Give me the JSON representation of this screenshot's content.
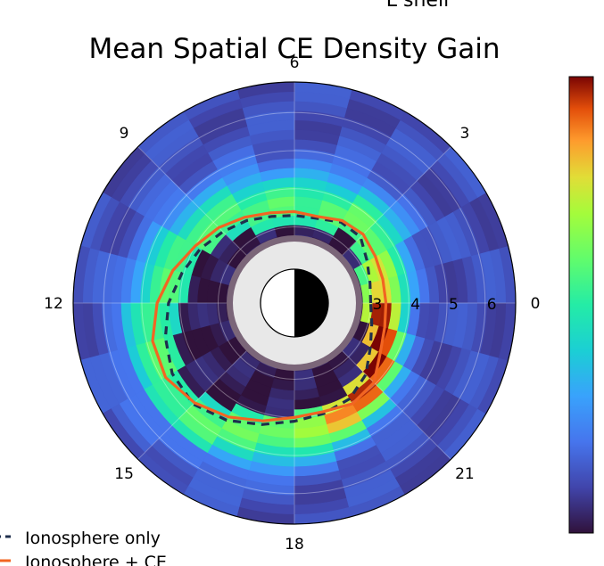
{
  "header_fragment": "L shell",
  "chart_data": {
    "type": "heatmap",
    "projection": "polar",
    "title": "Mean Spatial CE Density Gain",
    "theta_axis": {
      "quantity": "MLT",
      "ticks": [
        "6",
        "3",
        "0",
        "21",
        "18",
        "15",
        "12",
        "9"
      ]
    },
    "radial_axis": {
      "quantity": "L shell",
      "ticks": [
        "3",
        "4",
        "5",
        "6"
      ],
      "range": [
        1,
        6.8
      ]
    },
    "colormap": "turbo",
    "colorbar_tick_labels": "partially cropped, not legible",
    "earth_symbol": "half day / half night disk",
    "legend": {
      "placement": "bottom-left",
      "entries": [
        {
          "label": "Ionosphere only",
          "color": "#1f2f4d",
          "style": "dashed"
        },
        {
          "label": "Ionosphere + CE",
          "color": "#f26522",
          "style": "solid"
        }
      ]
    },
    "series": [
      {
        "name": "Ionosphere only",
        "mlt": [
          0,
          1,
          2,
          3,
          4,
          5,
          6,
          7,
          8,
          9,
          10,
          11,
          12,
          13,
          14,
          15,
          16,
          17,
          18,
          19,
          20,
          21,
          22,
          23,
          24
        ],
        "L": [
          3.0,
          3.05,
          3.2,
          3.45,
          3.45,
          3.3,
          3.3,
          3.35,
          3.5,
          3.65,
          3.85,
          4.05,
          4.3,
          4.5,
          4.7,
          4.75,
          4.55,
          4.3,
          4.1,
          4.0,
          3.9,
          3.65,
          3.3,
          3.1,
          3.0
        ]
      },
      {
        "name": "Ionosphere + CE",
        "mlt": [
          0,
          1,
          2,
          3,
          4,
          5,
          6,
          7,
          8,
          9,
          10,
          11,
          12,
          13,
          14,
          15,
          16,
          17,
          18,
          19,
          20,
          21,
          22,
          23,
          24
        ],
        "L": [
          3.4,
          3.4,
          3.45,
          3.55,
          3.5,
          3.35,
          3.4,
          3.45,
          3.6,
          3.8,
          4.0,
          4.3,
          4.6,
          4.85,
          4.9,
          4.7,
          4.45,
          4.2,
          4.0,
          3.95,
          4.05,
          3.95,
          3.6,
          3.45,
          3.4
        ]
      }
    ]
  }
}
